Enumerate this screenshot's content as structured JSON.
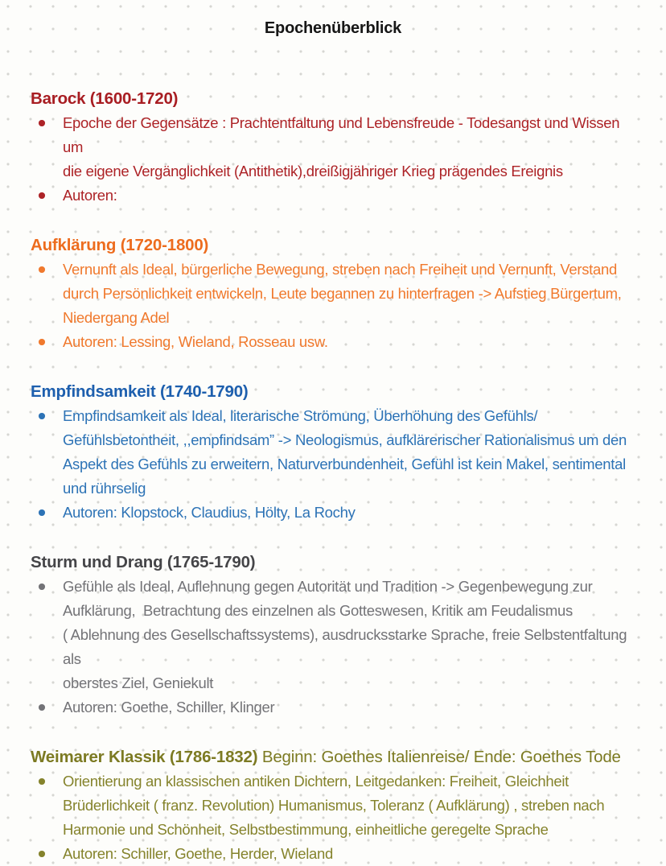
{
  "page": {
    "title": "Epochenüberblick"
  },
  "colors": {
    "background": "#fdfdfb",
    "grid_dot": "#d6d6d2",
    "title_text": "#161616"
  },
  "sections": [
    {
      "id": "barock",
      "heading": "Barock (1600-1720)",
      "heading_note": "",
      "heading_color": "#a81d22",
      "body_color": "#ad2327",
      "bullets": [
        "Epoche der Gegensätze : Prachtentfaltung und Lebensfreude - Todesangst und Wissen um\ndie eigene Vergänglichkeit (Antithetik),dreißigjähriger Krieg prägendes Ereignis",
        "Autoren:"
      ]
    },
    {
      "id": "aufklaerung",
      "heading": "Aufklärung (1720-1800)",
      "heading_note": "",
      "heading_color": "#ed6c1e",
      "body_color": "#f0792d",
      "bullets": [
        "Vernunft als Ideal, bürgerliche Bewegung, streben nach Freiheit und Vernunft, Verstand\ndurch Persönlichkeit entwickeln, Leute begannen zu hinterfragen -> Aufstieg Bürgertum,\nNiedergang Adel",
        "Autoren: Lessing, Wieland, Rosseau usw."
      ]
    },
    {
      "id": "empfindsamkeit",
      "heading": "Empfindsamkeit (1740-1790)",
      "heading_note": "",
      "heading_color": "#1d5fae",
      "body_color": "#2d73b6",
      "bullets": [
        "Empfindsamkeit als Ideal, literarische Strömung, Überhöhung des Gefühls/\nGefühlsbetontheit, ,,empfindsam” -> Neologismus, aufklärerischer Rationalismus um den\nAspekt des Gefühls zu erweitern, Naturverbundenheit, Gefühl ist kein Makel, sentimental\nund rührselig",
        "Autoren: Klopstock, Claudius, Hölty, La Rochy"
      ]
    },
    {
      "id": "sturm-und-drang",
      "heading": "Sturm und Drang (1765-1790)",
      "heading_note": "",
      "heading_color": "#454548",
      "body_color": "#737377",
      "bullets": [
        "Gefühle als Ideal, Auflehnung gegen Autorität und Tradition -> Gegenbewegung zur\nAufklärung,  Betrachtung des einzelnen als Gotteswesen, Kritik am Feudalismus\n( Ablehnung des Gesellschaftssystems), ausdrucksstarke Sprache, freie Selbstentfaltung als\noberstes Ziel, Geniekult",
        "Autoren: Goethe, Schiller, Klinger"
      ]
    },
    {
      "id": "weimarer-klassik",
      "heading": "Weimarer Klassik (1786-1832)",
      "heading_note": "Beginn: Goethes Italienreise/ Ende: Goethes Tode",
      "heading_color": "#7c7a22",
      "body_color": "#85832c",
      "bullets": [
        "Orientierung an klassischen antiken Dichtern, Leitgedanken: Freiheit, Gleichheit\nBrüderlichkeit ( franz. Revolution) Humanismus, Toleranz ( Aufklärung) , streben nach\nHarmonie und Schönheit, Selbstbestimmung, einheitliche geregelte Sprache",
        "Autoren: Schiller, Goethe, Herder, Wieland"
      ]
    }
  ]
}
